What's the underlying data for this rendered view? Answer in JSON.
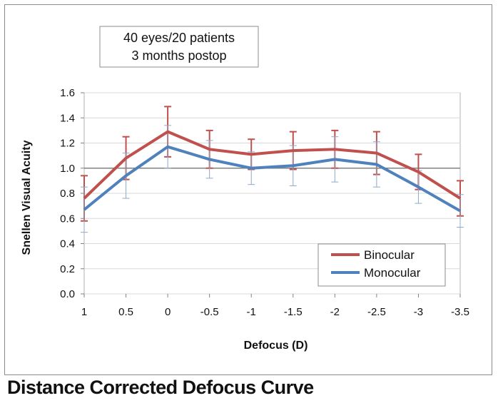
{
  "caption": "Distance Corrected Defocus Curve",
  "chart_data": {
    "type": "line",
    "xlabel": "Defocus (D)",
    "ylabel": "Snellen Visual Acuity",
    "categories": [
      "1",
      "0.5",
      "0",
      "-0.5",
      "-1",
      "-1.5",
      "-2",
      "-2.5",
      "-3",
      "-3.5"
    ],
    "ylim": [
      0,
      1.6
    ],
    "yticks": [
      "0.0",
      "0.2",
      "0.4",
      "0.6",
      "0.8",
      "1.0",
      "1.2",
      "1.4",
      "1.6"
    ],
    "grid": true,
    "reference_line": 1.0,
    "annotation": [
      "40 eyes/20 patients",
      "3 months postop"
    ],
    "legend_position": "bottom-right",
    "series": [
      {
        "name": "Binocular",
        "color": "#c0504d",
        "values": [
          0.76,
          1.08,
          1.29,
          1.15,
          1.11,
          1.14,
          1.15,
          1.12,
          0.97,
          0.76
        ],
        "error": [
          0.18,
          0.17,
          0.2,
          0.15,
          0.12,
          0.15,
          0.15,
          0.17,
          0.14,
          0.14
        ]
      },
      {
        "name": "Monocular",
        "color": "#4f81bd",
        "values": [
          0.67,
          0.94,
          1.17,
          1.07,
          1.0,
          1.02,
          1.07,
          1.03,
          0.85,
          0.66
        ],
        "error": [
          0.18,
          0.18,
          0.17,
          0.15,
          0.13,
          0.16,
          0.18,
          0.18,
          0.13,
          0.13
        ]
      }
    ]
  }
}
